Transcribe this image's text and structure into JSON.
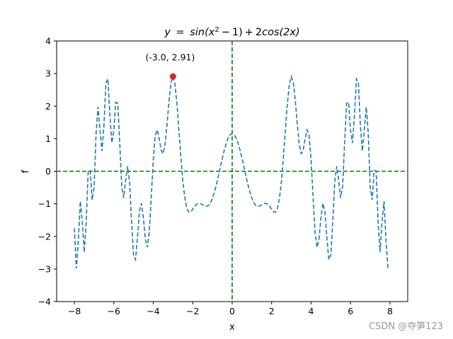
{
  "chart_data": {
    "type": "line",
    "title_parts": {
      "y": "y",
      "eq": "=",
      "sin_open": "sin(x",
      "sup": "2",
      "minus": "−",
      "one_close": "1)",
      "plus": "+",
      "two": "2",
      "cos": "cos(2x)"
    },
    "xlabel": "x",
    "ylabel": "f",
    "xlim": [
      -8.9,
      8.9
    ],
    "ylim": [
      -4,
      4
    ],
    "xticks": [
      -8,
      -6,
      -4,
      -2,
      0,
      2,
      4,
      6,
      8
    ],
    "xtick_labels": [
      "−8",
      "−6",
      "−4",
      "−2",
      "0",
      "2",
      "4",
      "6",
      "8"
    ],
    "yticks": [
      -4,
      -3,
      -2,
      -1,
      0,
      1,
      2,
      3,
      4
    ],
    "ytick_labels": [
      "−4",
      "−3",
      "−2",
      "−1",
      "0",
      "1",
      "2",
      "3",
      "4"
    ],
    "series": [
      {
        "formula": "sin(x^2 - 1) + 2cos(2x)",
        "domain": [
          -8,
          7.9
        ],
        "step": 0.1,
        "color": "#1f77b4",
        "style": "dashed"
      }
    ],
    "reference_lines": {
      "horizontal_y": 0,
      "vertical_x": 0,
      "color": "#008000",
      "style": "dashed"
    },
    "highlight_point": {
      "x": -3.0,
      "y": 2.91,
      "color": "#d62728",
      "label": "(-3.0, 2.91)"
    }
  },
  "watermark": "CSDN @夺笋123"
}
